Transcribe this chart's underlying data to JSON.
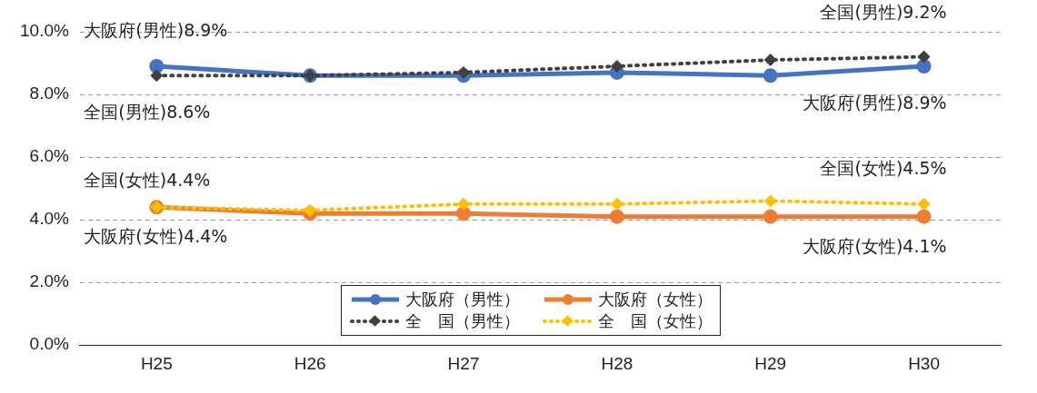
{
  "chart_data": {
    "type": "line",
    "categories": [
      "H25",
      "H26",
      "H27",
      "H28",
      "H29",
      "H30"
    ],
    "series": [
      {
        "name": "大阪府（男性）",
        "color": "#4472c4",
        "marker": "circle",
        "line_style": "solid",
        "values": [
          8.9,
          8.6,
          8.6,
          8.7,
          8.6,
          8.9
        ]
      },
      {
        "name": "大阪府（女性）",
        "color": "#ed7d31",
        "marker": "circle",
        "line_style": "solid",
        "values": [
          4.4,
          4.2,
          4.2,
          4.1,
          4.1,
          4.1
        ]
      },
      {
        "name": "全　国（男性）",
        "color": "#404040",
        "marker": "diamond",
        "line_style": "dotted",
        "values": [
          8.6,
          8.6,
          8.7,
          8.9,
          9.1,
          9.2
        ]
      },
      {
        "name": "全　国（女性）",
        "color": "#ffc000",
        "marker": "diamond",
        "line_style": "dotted",
        "values": [
          4.4,
          4.3,
          4.5,
          4.5,
          4.6,
          4.5
        ]
      }
    ],
    "ylim": [
      0,
      10
    ],
    "yticks": [
      {
        "value": 0,
        "label": "0.0%"
      },
      {
        "value": 2,
        "label": "2.0%"
      },
      {
        "value": 4,
        "label": "4.0%"
      },
      {
        "value": 6,
        "label": "6.0%"
      },
      {
        "value": 8,
        "label": "8.0%"
      },
      {
        "value": 10,
        "label": "10.0%"
      }
    ],
    "grid": "y",
    "legend": "bottom",
    "annotations": [
      {
        "text": "大阪府(男性)8.9%",
        "x": "H25",
        "y": 8.9
      },
      {
        "text": "全国(男性)8.6%",
        "x": "H25",
        "y": 8.6
      },
      {
        "text": "全国(男性)9.2%",
        "x": "H30",
        "y": 9.2
      },
      {
        "text": "大阪府(男性)8.9%",
        "x": "H30",
        "y": 8.9
      },
      {
        "text": "全国(女性)4.4%",
        "x": "H25",
        "y": 4.4
      },
      {
        "text": "大阪府(女性)4.4%",
        "x": "H25",
        "y": 4.4
      },
      {
        "text": "全国(女性)4.5%",
        "x": "H30",
        "y": 4.5
      },
      {
        "text": "大阪府(女性)4.1%",
        "x": "H30",
        "y": 4.1
      }
    ]
  }
}
